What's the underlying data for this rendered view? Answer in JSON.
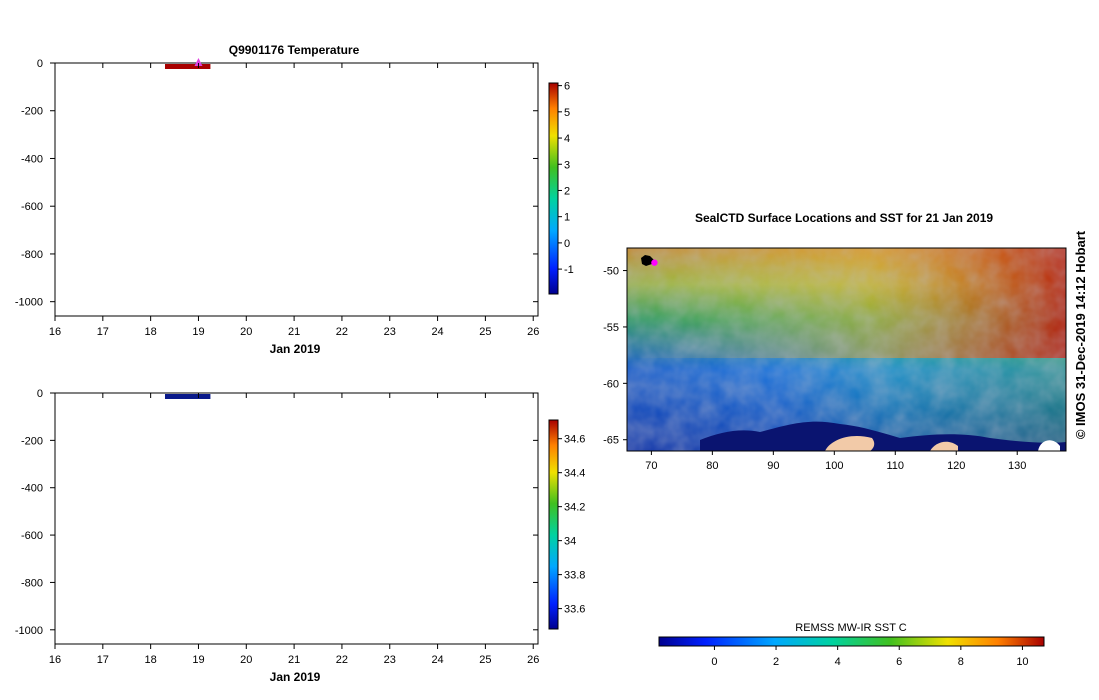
{
  "credit": "© IMOS 31-Dec-2019 14:12 Hobart",
  "chart_data": [
    {
      "type": "heatmap",
      "title": "Q9901176  Temperature",
      "xlabel": "Jan 2019",
      "x_tick_labels": [
        "16",
        "17",
        "18",
        "19",
        "20",
        "21",
        "22",
        "23",
        "24",
        "25",
        "26"
      ],
      "xlim": [
        16,
        26.1
      ],
      "y_tick_labels": [
        "0",
        "-200",
        "-400",
        "-600",
        "-800",
        "-1000"
      ],
      "ylim": [
        -1060,
        0
      ],
      "profile": {
        "x_start": 18.3,
        "x_end": 19.25,
        "depth_min": 0,
        "depth_max": -20,
        "color": "#a80000"
      },
      "marker": {
        "x": 19,
        "y": 0,
        "color": "#e040e0"
      },
      "colorbar": {
        "range": [
          -1.95,
          6.1
        ],
        "tick_labels": [
          "-1",
          "0",
          "1",
          "2",
          "3",
          "4",
          "5",
          "6"
        ]
      }
    },
    {
      "type": "heatmap",
      "title": "",
      "xlabel": "Jan 2019",
      "x_tick_labels": [
        "16",
        "17",
        "18",
        "19",
        "20",
        "21",
        "22",
        "23",
        "24",
        "25",
        "26"
      ],
      "xlim": [
        16,
        26.1
      ],
      "y_tick_labels": [
        "0",
        "-200",
        "-400",
        "-600",
        "-800",
        "-1000"
      ],
      "ylim": [
        -1060,
        0
      ],
      "profile": {
        "x_start": 18.3,
        "x_end": 19.25,
        "depth_min": 0,
        "depth_max": -20,
        "color": "#0a1a8a"
      },
      "colorbar": {
        "range": [
          33.48,
          34.71
        ],
        "tick_labels": [
          "33.6",
          "33.8",
          "34",
          "34.2",
          "34.4",
          "34.6"
        ]
      }
    },
    {
      "type": "heatmap",
      "title": "SealCTD Surface Locations and SST for 21 Jan 2019",
      "x_tick_labels": [
        "70",
        "80",
        "90",
        "100",
        "110",
        "120",
        "130"
      ],
      "xlim": [
        66,
        138
      ],
      "y_tick_labels": [
        "-50",
        "-55",
        "-60",
        "-65"
      ],
      "ylim": [
        -66,
        -48
      ],
      "stations": [
        {
          "lon": 70.5,
          "lat": -49.3,
          "color": "#ff00ff"
        }
      ],
      "colorbar": {
        "label": "REMSS MW-IR SST C",
        "range": [
          -1.8,
          10.7
        ],
        "tick_labels": [
          "0",
          "2",
          "4",
          "6",
          "8",
          "10"
        ]
      }
    }
  ]
}
